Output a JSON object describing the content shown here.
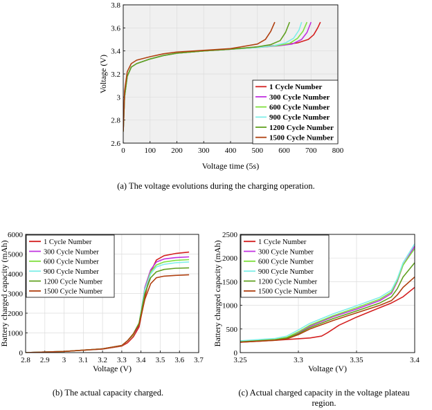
{
  "captions": {
    "a": "(a) The voltage evolutions during the charging operation.",
    "b": "(b) The actual capacity charged.",
    "c_line1": "(c) Actual charged capacity in the voltage plateau",
    "c_line2": "region."
  },
  "colors": {
    "1 Cycle Number": "#d42020",
    "300 Cycle Number": "#c030e0",
    "600 Cycle Number": "#80e040",
    "900 Cycle Number": "#80eee8",
    "1200 Cycle Number": "#60a020",
    "1500 Cycle Number": "#b04010"
  },
  "chart_data": [
    {
      "id": "a",
      "type": "line",
      "xlabel": "Voltage time (5s)",
      "ylabel": "Voltage (V)",
      "xlim": [
        0,
        800
      ],
      "ylim": [
        2.6,
        3.8
      ],
      "xticks": [
        0,
        100,
        200,
        300,
        400,
        500,
        600,
        700,
        800
      ],
      "yticks": [
        2.6,
        2.8,
        3,
        3.2,
        3.4,
        3.6,
        3.8
      ],
      "ytick_labels": [
        "2.6",
        "2.8",
        "3",
        "3.2",
        "3.4",
        "3.6",
        "3.8"
      ],
      "grid": true,
      "legend_position": "bottom-right",
      "series": [
        {
          "name": "1 Cycle Number",
          "x": [
            0,
            5,
            15,
            30,
            50,
            100,
            150,
            200,
            300,
            400,
            500,
            600,
            650,
            690,
            710,
            725,
            735
          ],
          "y": [
            2.7,
            3.0,
            3.18,
            3.26,
            3.29,
            3.33,
            3.36,
            3.38,
            3.4,
            3.415,
            3.435,
            3.455,
            3.47,
            3.5,
            3.54,
            3.6,
            3.65
          ]
        },
        {
          "name": "300 Cycle Number",
          "x": [
            0,
            5,
            15,
            30,
            50,
            100,
            150,
            200,
            300,
            400,
            500,
            580,
            630,
            665,
            685,
            700
          ],
          "y": [
            2.7,
            3.0,
            3.18,
            3.26,
            3.29,
            3.33,
            3.36,
            3.38,
            3.4,
            3.415,
            3.43,
            3.445,
            3.46,
            3.5,
            3.56,
            3.65
          ]
        },
        {
          "name": "600 Cycle Number",
          "x": [
            0,
            5,
            15,
            30,
            50,
            100,
            150,
            200,
            300,
            400,
            500,
            570,
            620,
            650,
            670,
            685
          ],
          "y": [
            2.7,
            3.0,
            3.18,
            3.26,
            3.29,
            3.33,
            3.36,
            3.38,
            3.4,
            3.415,
            3.43,
            3.445,
            3.465,
            3.51,
            3.57,
            3.65
          ]
        },
        {
          "name": "900 Cycle Number",
          "x": [
            0,
            5,
            15,
            30,
            50,
            100,
            150,
            200,
            300,
            400,
            500,
            560,
            605,
            635,
            655,
            665
          ],
          "y": [
            2.7,
            3.0,
            3.18,
            3.26,
            3.29,
            3.33,
            3.36,
            3.38,
            3.4,
            3.415,
            3.43,
            3.445,
            3.47,
            3.51,
            3.58,
            3.65
          ]
        },
        {
          "name": "1200 Cycle Number",
          "x": [
            0,
            5,
            15,
            30,
            50,
            100,
            150,
            200,
            300,
            400,
            500,
            550,
            585,
            605,
            620
          ],
          "y": [
            2.7,
            3.0,
            3.18,
            3.26,
            3.29,
            3.33,
            3.36,
            3.38,
            3.4,
            3.415,
            3.435,
            3.455,
            3.49,
            3.56,
            3.65
          ]
        },
        {
          "name": "1500 Cycle Number",
          "x": [
            0,
            5,
            15,
            30,
            50,
            100,
            150,
            200,
            300,
            400,
            450,
            500,
            530,
            550,
            565
          ],
          "y": [
            2.7,
            3.05,
            3.22,
            3.29,
            3.32,
            3.35,
            3.375,
            3.39,
            3.405,
            3.42,
            3.44,
            3.46,
            3.5,
            3.57,
            3.65
          ]
        }
      ]
    },
    {
      "id": "b",
      "type": "line",
      "xlabel": "Voltage (V)",
      "ylabel": "Battery charged capacity (mAh)",
      "xlim": [
        2.8,
        3.7
      ],
      "ylim": [
        0,
        6000
      ],
      "xticks": [
        2.8,
        2.9,
        3,
        3.1,
        3.2,
        3.3,
        3.4,
        3.5,
        3.6,
        3.7
      ],
      "xtick_labels": [
        "2.8",
        "2.9",
        "3",
        "3.1",
        "3.2",
        "3.3",
        "3.4",
        "3.5",
        "3.6",
        "3.7"
      ],
      "yticks": [
        0,
        1000,
        2000,
        3000,
        4000,
        5000,
        6000
      ],
      "grid": true,
      "legend_position": "top-left",
      "series": [
        {
          "name": "1 Cycle Number",
          "x": [
            2.8,
            3.0,
            3.2,
            3.3,
            3.33,
            3.36,
            3.39,
            3.42,
            3.45,
            3.48,
            3.52,
            3.58,
            3.65
          ],
          "y": [
            0,
            60,
            180,
            330,
            500,
            800,
            1300,
            2800,
            4100,
            4700,
            4920,
            5030,
            5100
          ]
        },
        {
          "name": "300 Cycle Number",
          "x": [
            2.8,
            3.0,
            3.2,
            3.3,
            3.33,
            3.36,
            3.39,
            3.42,
            3.45,
            3.48,
            3.52,
            3.58,
            3.65
          ],
          "y": [
            0,
            60,
            190,
            350,
            600,
            900,
            1400,
            3300,
            4200,
            4600,
            4750,
            4820,
            4860
          ]
        },
        {
          "name": "600 Cycle Number",
          "x": [
            2.8,
            3.0,
            3.2,
            3.3,
            3.33,
            3.36,
            3.39,
            3.42,
            3.45,
            3.48,
            3.52,
            3.58,
            3.65
          ],
          "y": [
            0,
            60,
            190,
            350,
            600,
            900,
            1500,
            3200,
            4100,
            4450,
            4600,
            4680,
            4720
          ]
        },
        {
          "name": "900 Cycle Number",
          "x": [
            2.8,
            3.0,
            3.2,
            3.3,
            3.33,
            3.36,
            3.39,
            3.42,
            3.45,
            3.48,
            3.52,
            3.58,
            3.65
          ],
          "y": [
            0,
            60,
            190,
            360,
            600,
            950,
            1500,
            3200,
            4000,
            4350,
            4480,
            4560,
            4600
          ]
        },
        {
          "name": "1200 Cycle Number",
          "x": [
            2.8,
            3.0,
            3.2,
            3.3,
            3.33,
            3.36,
            3.39,
            3.42,
            3.45,
            3.48,
            3.52,
            3.58,
            3.65
          ],
          "y": [
            0,
            60,
            190,
            360,
            600,
            950,
            1500,
            3000,
            3800,
            4100,
            4220,
            4280,
            4300
          ]
        },
        {
          "name": "1500 Cycle Number",
          "x": [
            2.8,
            3.0,
            3.2,
            3.3,
            3.33,
            3.36,
            3.39,
            3.42,
            3.45,
            3.48,
            3.52,
            3.58,
            3.65
          ],
          "y": [
            0,
            60,
            190,
            360,
            600,
            950,
            1400,
            2700,
            3500,
            3800,
            3880,
            3920,
            3950
          ]
        }
      ]
    },
    {
      "id": "c",
      "type": "line",
      "xlabel": "Voltage (V)",
      "ylabel": "Battery charged capacity (mAh)",
      "xlim": [
        3.25,
        3.4
      ],
      "ylim": [
        0,
        2500
      ],
      "xticks": [
        3.25,
        3.3,
        3.35,
        3.4
      ],
      "xtick_labels": [
        "3.25",
        "3.3",
        "3.35",
        "3.4"
      ],
      "yticks": [
        0,
        500,
        1000,
        1500,
        2000,
        2500
      ],
      "grid": true,
      "legend_position": "top-left",
      "series": [
        {
          "name": "1 Cycle Number",
          "x": [
            3.25,
            3.28,
            3.31,
            3.32,
            3.325,
            3.335,
            3.35,
            3.365,
            3.38,
            3.39,
            3.4
          ],
          "y": [
            220,
            260,
            310,
            350,
            420,
            580,
            750,
            900,
            1050,
            1180,
            1380
          ]
        },
        {
          "name": "300 Cycle Number",
          "x": [
            3.25,
            3.28,
            3.29,
            3.3,
            3.31,
            3.33,
            3.35,
            3.37,
            3.38,
            3.385,
            3.39,
            3.4
          ],
          "y": [
            230,
            270,
            310,
            420,
            560,
            760,
            920,
            1100,
            1250,
            1500,
            1850,
            2250
          ]
        },
        {
          "name": "600 Cycle Number",
          "x": [
            3.25,
            3.28,
            3.29,
            3.3,
            3.31,
            3.33,
            3.35,
            3.37,
            3.38,
            3.385,
            3.39,
            3.4
          ],
          "y": [
            240,
            280,
            320,
            440,
            580,
            780,
            950,
            1130,
            1280,
            1520,
            1850,
            2200
          ]
        },
        {
          "name": "900 Cycle Number",
          "x": [
            3.25,
            3.28,
            3.29,
            3.3,
            3.31,
            3.33,
            3.35,
            3.37,
            3.38,
            3.385,
            3.39,
            3.4
          ],
          "y": [
            250,
            300,
            350,
            480,
            620,
            820,
            990,
            1170,
            1320,
            1560,
            1900,
            2300
          ]
        },
        {
          "name": "1200 Cycle Number",
          "x": [
            3.25,
            3.28,
            3.29,
            3.3,
            3.31,
            3.33,
            3.35,
            3.37,
            3.38,
            3.385,
            3.39,
            3.4
          ],
          "y": [
            230,
            270,
            310,
            400,
            530,
            720,
            880,
            1050,
            1180,
            1350,
            1600,
            1900
          ]
        },
        {
          "name": "1500 Cycle Number",
          "x": [
            3.25,
            3.28,
            3.29,
            3.3,
            3.31,
            3.33,
            3.35,
            3.37,
            3.38,
            3.385,
            3.39,
            3.4
          ],
          "y": [
            220,
            260,
            290,
            380,
            500,
            680,
            840,
            1000,
            1100,
            1220,
            1380,
            1600
          ]
        }
      ]
    }
  ]
}
